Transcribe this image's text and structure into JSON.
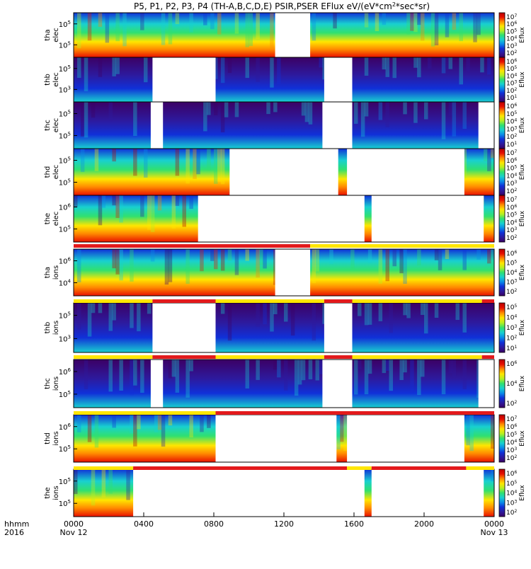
{
  "chart_data": {
    "type": "heatmap",
    "title": "P5, P1, P2, P3, P4 (TH-A,B,C,D,E) PSIR,PSER EFlux eV/(eV*cm²*sec*sr)",
    "title_parts": {
      "main": "P5, P1, P2, P3, P4 (TH-A,B,C,D,E) PSIR,PSER EFlux eV/(eV*cm",
      "sup": "2",
      "tail": "*sec*sr)"
    },
    "x_axis": {
      "label_line1": "hhmm",
      "label_line2": "2016",
      "range_hours": [
        0,
        24
      ],
      "ticks": [
        {
          "hour": 0,
          "text": "0000",
          "date": "Nov 12"
        },
        {
          "hour": 4,
          "text": "0400",
          "date": ""
        },
        {
          "hour": 8,
          "text": "0800",
          "date": ""
        },
        {
          "hour": 12,
          "text": "1200",
          "date": ""
        },
        {
          "hour": 16,
          "text": "1600",
          "date": ""
        },
        {
          "hour": 20,
          "text": "2000",
          "date": ""
        },
        {
          "hour": 24,
          "text": "0000",
          "date": "Nov 13"
        }
      ]
    },
    "colorbar_label": "Eflux",
    "panels": [
      {
        "probe": "tha",
        "species": "elec",
        "y_ticks": [
          "10",
          "10"
        ],
        "y_exps": [
          "5",
          "5"
        ],
        "y_tick_fracs": [
          0.25,
          0.72
        ],
        "cbar_exps": [
          "7",
          "6",
          "5",
          "4",
          "3",
          "2"
        ],
        "gaps": [
          [
            11.5,
            13.5
          ]
        ],
        "dense": []
      },
      {
        "probe": "thb",
        "species": "elec",
        "y_ticks": [
          "10",
          "10"
        ],
        "y_exps": [
          "5",
          "3"
        ],
        "y_tick_fracs": [
          0.25,
          0.72
        ],
        "cbar_exps": [
          "6",
          "5",
          "4",
          "3",
          "2",
          "1"
        ],
        "gaps": [
          [
            4.5,
            8.1
          ],
          [
            14.3,
            15.9
          ]
        ],
        "dense": []
      },
      {
        "probe": "thc",
        "species": "elec",
        "y_ticks": [
          "10",
          "10"
        ],
        "y_exps": [
          "5",
          "5"
        ],
        "y_tick_fracs": [
          0.25,
          0.72
        ],
        "cbar_exps": [
          "6",
          "5",
          "4",
          "3",
          "2",
          "1"
        ],
        "gaps": [
          [
            4.4,
            5.1
          ],
          [
            14.2,
            15.9
          ],
          [
            23.1,
            24.0
          ]
        ],
        "dense": []
      },
      {
        "probe": "thd",
        "species": "elec",
        "y_ticks": [
          "10",
          "10"
        ],
        "y_exps": [
          "5",
          "5"
        ],
        "y_tick_fracs": [
          0.25,
          0.72
        ],
        "cbar_exps": [
          "7",
          "6",
          "5",
          "4",
          "3",
          "2"
        ],
        "gaps": [
          [
            8.9,
            15.1
          ],
          [
            15.6,
            22.3
          ]
        ],
        "dense": []
      },
      {
        "probe": "the",
        "species": "elec",
        "y_ticks": [
          "10",
          "10"
        ],
        "y_exps": [
          "6",
          "5"
        ],
        "y_tick_fracs": [
          0.25,
          0.72
        ],
        "cbar_exps": [
          "7",
          "6",
          "5",
          "4",
          "3",
          "2"
        ],
        "gaps": [
          [
            7.1,
            16.6
          ],
          [
            17.0,
            23.4
          ]
        ],
        "dense": []
      },
      {
        "probe": "tha",
        "species": "ions",
        "y_ticks": [
          "10",
          "10"
        ],
        "y_exps": [
          "6",
          "4"
        ],
        "y_tick_fracs": [
          0.25,
          0.72
        ],
        "cbar_exps": [
          "6",
          "5",
          "4",
          "3",
          "2"
        ],
        "gaps": [
          [
            11.5,
            13.5
          ]
        ],
        "dense": []
      },
      {
        "probe": "thb",
        "species": "ions",
        "y_ticks": [
          "10",
          "10"
        ],
        "y_exps": [
          "5",
          "3"
        ],
        "y_tick_fracs": [
          0.25,
          0.72
        ],
        "cbar_exps": [
          "5",
          "4",
          "3",
          "2",
          "1"
        ],
        "gaps": [
          [
            4.5,
            8.1
          ],
          [
            14.3,
            15.9
          ]
        ],
        "dense": []
      },
      {
        "probe": "thc",
        "species": "ions",
        "y_ticks": [
          "10",
          "10"
        ],
        "y_exps": [
          "6",
          "5"
        ],
        "y_tick_fracs": [
          0.25,
          0.72
        ],
        "cbar_exps": [
          "6",
          "4",
          "2"
        ],
        "gaps": [
          [
            4.4,
            5.1
          ],
          [
            14.2,
            15.9
          ],
          [
            23.1,
            24.0
          ]
        ],
        "dense": []
      },
      {
        "probe": "thd",
        "species": "ions",
        "y_ticks": [
          "10",
          "10"
        ],
        "y_exps": [
          "6",
          "5"
        ],
        "y_tick_fracs": [
          0.25,
          0.72
        ],
        "cbar_exps": [
          "7",
          "6",
          "5",
          "4",
          "3",
          "2"
        ],
        "gaps": [
          [
            8.1,
            15.0
          ],
          [
            15.6,
            22.3
          ]
        ],
        "dense": []
      },
      {
        "probe": "the",
        "species": "ions",
        "y_ticks": [
          "10",
          "10"
        ],
        "y_exps": [
          "5",
          "5"
        ],
        "y_tick_fracs": [
          0.25,
          0.72
        ],
        "cbar_exps": [
          "6",
          "5",
          "4",
          "3",
          "2"
        ],
        "gaps": [
          [
            3.4,
            16.6
          ],
          [
            17.0,
            23.4
          ]
        ],
        "dense": []
      }
    ],
    "mode_bars": [
      {
        "after_panel": 4,
        "segments": [
          {
            "from": 0,
            "to": 13.5,
            "color": "#e31a1c"
          },
          {
            "from": 13.5,
            "to": 24,
            "color": "#ffe600"
          }
        ]
      },
      {
        "after_panel": 5,
        "segments": [
          {
            "from": 0,
            "to": 4.5,
            "color": "#ffe600"
          },
          {
            "from": 4.5,
            "to": 8.1,
            "color": "#e31a1c"
          },
          {
            "from": 8.1,
            "to": 14.3,
            "color": "#ffe600"
          },
          {
            "from": 14.3,
            "to": 15.9,
            "color": "#e31a1c"
          },
          {
            "from": 15.9,
            "to": 23.3,
            "color": "#ffe600"
          },
          {
            "from": 23.3,
            "to": 24,
            "color": "#e31a1c"
          }
        ]
      },
      {
        "after_panel": 6,
        "segments": [
          {
            "from": 0,
            "to": 4.5,
            "color": "#ffe600"
          },
          {
            "from": 4.5,
            "to": 8.1,
            "color": "#e31a1c"
          },
          {
            "from": 8.1,
            "to": 14.3,
            "color": "#ffe600"
          },
          {
            "from": 14.3,
            "to": 15.9,
            "color": "#e31a1c"
          },
          {
            "from": 15.9,
            "to": 23.3,
            "color": "#ffe600"
          },
          {
            "from": 23.3,
            "to": 24,
            "color": "#e31a1c"
          }
        ]
      },
      {
        "after_panel": 7,
        "segments": [
          {
            "from": 0,
            "to": 8.1,
            "color": "#ffe600"
          },
          {
            "from": 8.1,
            "to": 24,
            "color": "#e31a1c"
          }
        ]
      },
      {
        "after_panel": 8,
        "segments": [
          {
            "from": 0,
            "to": 3.4,
            "color": "#ffe600"
          },
          {
            "from": 3.4,
            "to": 15.6,
            "color": "#e31a1c"
          },
          {
            "from": 15.6,
            "to": 17.0,
            "color": "#ffe600"
          },
          {
            "from": 17.0,
            "to": 22.4,
            "color": "#e31a1c"
          },
          {
            "from": 22.4,
            "to": 24,
            "color": "#ffe600"
          }
        ]
      }
    ],
    "colors": {
      "rainbow": [
        "#3c0064",
        "#2d1a9e",
        "#1030d8",
        "#0a8ce8",
        "#18d0d0",
        "#30e070",
        "#b8f020",
        "#ffe600",
        "#ff8a00",
        "#e81000",
        "#b80000"
      ]
    }
  }
}
